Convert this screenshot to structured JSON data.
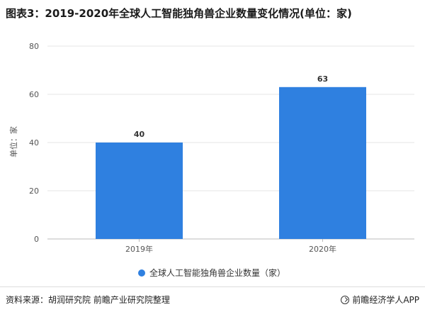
{
  "title": "图表3：2019-2020年全球人工智能独角兽企业数量变化情况(单位：家)",
  "colors": {
    "bar": "#2f80e0",
    "axis_text": "#555555",
    "grid": "#e6e6e6"
  },
  "chart_data": {
    "type": "bar",
    "categories": [
      "2019年",
      "2020年"
    ],
    "series": [
      {
        "name": "全球人工智能独角兽企业数量（家）",
        "values": [
          40,
          63
        ]
      }
    ],
    "data_labels": [
      "40",
      "63"
    ],
    "ylabel": "单位：家",
    "ylim": [
      0,
      80
    ],
    "yticks": [
      0,
      20,
      40,
      60,
      80
    ],
    "grid": true,
    "legend": "bottom"
  },
  "footer": {
    "source": "资料来源：胡润研究院 前瞻产业研究院整理",
    "brand": "前瞻经济学人APP",
    "brand_icon": "qianzhan-logo-icon"
  }
}
